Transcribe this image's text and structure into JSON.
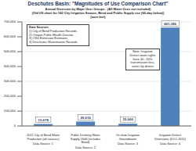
{
  "chart_data": {
    "type": "bar",
    "title": "Deschutes Basin: \"Magnitudes of Use Comparison Chart\"",
    "subtitle": [
      "Annual Diversion by Major User Groups - (All Water Uses not included)",
      "(Old US chart for 100 City Irrigation Season, Bend and Public Supply use (60-day below))",
      "(acre-feet)"
    ],
    "categories": [
      "2012 City of Bend Water Production (all sources)",
      "Public Drinking Water Supply 2006 (includes Bend)",
      "On-farm Irrigation Groundwater",
      "Irrigation District Diversions (DCC 2011)"
    ],
    "sources": [
      "Data Source: 1",
      "Data Source: 2",
      "Data Source: 3",
      "Data Source: 4"
    ],
    "values": [
      13678,
      29616,
      15000,
      661365
    ],
    "value_labels": [
      "13,678",
      "29,616",
      "15,000",
      "661,365"
    ],
    "data_labels": true,
    "color": "#4f81bd",
    "ylim": [
      0,
      700000
    ],
    "yticks": [
      0,
      {
        "value": 100000,
        "label": "100,000"
      },
      {
        "value": 200000,
        "label": "200,000"
      },
      {
        "value": 300000,
        "label": "300,000"
      },
      {
        "value": 400000,
        "label": "400,000"
      },
      {
        "value": 500000,
        "label": "500,000"
      },
      {
        "value": 600000,
        "label": "600,000"
      },
      {
        "value": 700000,
        "label": "700,000"
      }
    ],
    "grid": true,
    "legend_box": {
      "title": "Data Sources",
      "items": [
        "1) City of Bend Production Records",
        "2) Oregon Public Health Division",
        "3) OSU Extension Estimates",
        "4) Deschutes Watermaster Records"
      ]
    },
    "annotations": [
      "Note: Irrigation District water rights have 40 - 65% transmission loss, varies by district"
    ]
  }
}
